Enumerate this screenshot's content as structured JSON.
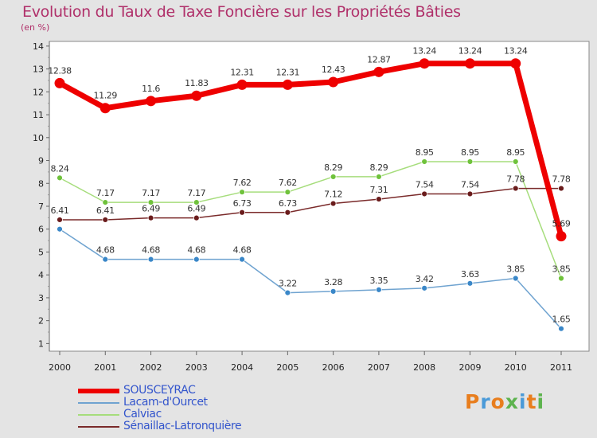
{
  "title": "Evolution du Taux de Taxe Foncière sur les Propriétés Bâties",
  "unit_label": "(en %)",
  "brand": {
    "text": "Proxiti",
    "letters": [
      {
        "ch": "P",
        "color": "#e87e1e"
      },
      {
        "ch": "r",
        "color": "#4a9ad8"
      },
      {
        "ch": "o",
        "color": "#e87e1e"
      },
      {
        "ch": "x",
        "color": "#5db34e"
      },
      {
        "ch": "i",
        "color": "#4a9ad8"
      },
      {
        "ch": "t",
        "color": "#e87e1e"
      },
      {
        "ch": "i",
        "color": "#5db34e"
      }
    ]
  },
  "chart_data": {
    "type": "line",
    "title": "Evolution du Taux de Taxe Foncière sur les Propriétés Bâties",
    "ylabel": "(en %)",
    "xlabel": "",
    "x": [
      "2000",
      "2001",
      "2002",
      "2003",
      "2004",
      "2005",
      "2006",
      "2007",
      "2008",
      "2009",
      "2010",
      "2011"
    ],
    "ylim": [
      0.7,
      14.1
    ],
    "yticks": [
      1,
      2,
      3,
      4,
      5,
      6,
      7,
      8,
      9,
      10,
      11,
      12,
      13,
      14
    ],
    "grid": false,
    "legend_position": "bottom-left",
    "series": [
      {
        "name": "SOUSCEYRAC",
        "color": "#ee0000",
        "marker_color": "#ee0000",
        "width": 7,
        "marker_r": 6.5,
        "values": [
          12.38,
          11.29,
          11.6,
          11.83,
          12.31,
          12.31,
          12.43,
          12.87,
          13.24,
          13.24,
          13.24,
          5.69
        ],
        "labels": [
          "12.38",
          "11.29",
          "11.6",
          "11.83",
          "12.31",
          "12.31",
          "12.43",
          "12.87",
          "13.24",
          "13.24",
          "13.24",
          "5.69"
        ]
      },
      {
        "name": "Lacam-d'Ourcet",
        "color": "#6fa3d0",
        "marker_color": "#3a87c8",
        "width": 1.5,
        "marker_r": 3.5,
        "values": [
          6.0,
          4.68,
          4.68,
          4.68,
          4.68,
          3.22,
          3.28,
          3.35,
          3.42,
          3.63,
          3.85,
          1.65
        ],
        "labels": [
          "",
          "4.68",
          "4.68",
          "4.68",
          "4.68",
          "3.22",
          "3.28",
          "3.35",
          "3.42",
          "3.63",
          "3.85",
          "1.65"
        ]
      },
      {
        "name": "Calviac",
        "color": "#a6dd7c",
        "marker_color": "#6fc23b",
        "width": 1.5,
        "marker_r": 3.5,
        "values": [
          8.24,
          7.17,
          7.17,
          7.17,
          7.62,
          7.62,
          8.29,
          8.29,
          8.95,
          8.95,
          8.95,
          3.85
        ],
        "labels": [
          "8.24",
          "7.17",
          "7.17",
          "7.17",
          "7.62",
          "7.62",
          "8.29",
          "8.29",
          "8.95",
          "8.95",
          "8.95",
          "3.85"
        ]
      },
      {
        "name": "Sénaillac-Latronquière",
        "color": "#7a2a2a",
        "marker_color": "#6a1c1c",
        "width": 1.5,
        "marker_r": 3.5,
        "values": [
          6.41,
          6.41,
          6.49,
          6.49,
          6.73,
          6.73,
          7.12,
          7.31,
          7.54,
          7.54,
          7.78,
          7.78
        ],
        "labels": [
          "6.41",
          "6.41",
          "6.49",
          "6.49",
          "6.73",
          "6.73",
          "7.12",
          "7.31",
          "7.54",
          "7.54",
          "7.78",
          "7.78"
        ]
      }
    ]
  }
}
